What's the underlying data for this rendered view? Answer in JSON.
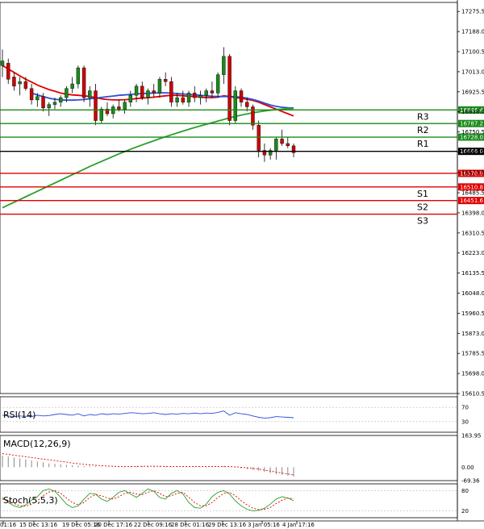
{
  "chart_data": {
    "type": "candlestick",
    "price_axis": {
      "ticks": [
        "17275.5",
        "17188.0",
        "17100.5",
        "17013.0",
        "16925.5",
        "16838.0",
        "16750.5",
        "16663.0",
        "16573.5",
        "16485.5",
        "16398.0",
        "16310.5",
        "16223.0",
        "16135.5",
        "16048.0",
        "15960.5",
        "15873.0",
        "15785.5",
        "15698.0",
        "15610.5"
      ],
      "range": [
        15610.5,
        17315
      ]
    },
    "time_axis": {
      "labels": [
        "01:16",
        "15 Dec 13:16",
        "19 Dec 05:16",
        "20 Dec 17:16",
        "22 Dec 09:16",
        "28 Dec 01:16",
        "29 Dec 13:16",
        "3 Jan 05:16",
        "4 Jan 17:16"
      ]
    },
    "levels": [
      {
        "name": "R3",
        "value": 16846.4,
        "label": "16846.4",
        "color": "#1a8a1a"
      },
      {
        "name": "R2",
        "value": 16787.2,
        "label": "16787.2",
        "color": "#1a8a1a"
      },
      {
        "name": "R1",
        "value": 16728.0,
        "label": "16728.0",
        "color": "#1a8a1a"
      },
      {
        "name": "",
        "value": 16666.0,
        "label": "16666.0",
        "color": "#000000"
      },
      {
        "name": "",
        "value": 16570.0,
        "label": "16570.0",
        "color": "#e00000"
      },
      {
        "name": "S1",
        "value": 16510.8,
        "label": "16510.8",
        "color": "#e00000"
      },
      {
        "name": "S2",
        "value": 16451.6,
        "label": "16451.6",
        "color": "#e00000"
      },
      {
        "name": "S3",
        "value": 16392.4,
        "label": "",
        "color": "#e00000"
      }
    ],
    "candles": [
      {
        "o": 17040,
        "h": 17110,
        "l": 16990,
        "c": 17060
      },
      {
        "o": 17050,
        "h": 17070,
        "l": 16960,
        "c": 16980
      },
      {
        "o": 16990,
        "h": 17010,
        "l": 16930,
        "c": 16950
      },
      {
        "o": 16960,
        "h": 16990,
        "l": 16910,
        "c": 16970
      },
      {
        "o": 16970,
        "h": 16990,
        "l": 16930,
        "c": 16940
      },
      {
        "o": 16940,
        "h": 16960,
        "l": 16870,
        "c": 16890
      },
      {
        "o": 16890,
        "h": 16920,
        "l": 16860,
        "c": 16905
      },
      {
        "o": 16905,
        "h": 16920,
        "l": 16840,
        "c": 16855
      },
      {
        "o": 16855,
        "h": 16880,
        "l": 16820,
        "c": 16870
      },
      {
        "o": 16870,
        "h": 16900,
        "l": 16850,
        "c": 16880
      },
      {
        "o": 16880,
        "h": 16910,
        "l": 16860,
        "c": 16900
      },
      {
        "o": 16900,
        "h": 16950,
        "l": 16880,
        "c": 16940
      },
      {
        "o": 16940,
        "h": 16990,
        "l": 16920,
        "c": 16960
      },
      {
        "o": 16960,
        "h": 17040,
        "l": 16940,
        "c": 17030
      },
      {
        "o": 17030,
        "h": 17040,
        "l": 16880,
        "c": 16900
      },
      {
        "o": 16900,
        "h": 16950,
        "l": 16860,
        "c": 16930
      },
      {
        "o": 16930,
        "h": 16960,
        "l": 16780,
        "c": 16800
      },
      {
        "o": 16800,
        "h": 16860,
        "l": 16790,
        "c": 16850
      },
      {
        "o": 16850,
        "h": 16880,
        "l": 16820,
        "c": 16830
      },
      {
        "o": 16830,
        "h": 16870,
        "l": 16810,
        "c": 16860
      },
      {
        "o": 16860,
        "h": 16890,
        "l": 16840,
        "c": 16850
      },
      {
        "o": 16850,
        "h": 16890,
        "l": 16830,
        "c": 16880
      },
      {
        "o": 16880,
        "h": 16930,
        "l": 16860,
        "c": 16910
      },
      {
        "o": 16910,
        "h": 16960,
        "l": 16880,
        "c": 16950
      },
      {
        "o": 16950,
        "h": 16970,
        "l": 16890,
        "c": 16900
      },
      {
        "o": 16900,
        "h": 16940,
        "l": 16870,
        "c": 16930
      },
      {
        "o": 16930,
        "h": 16960,
        "l": 16900,
        "c": 16920
      },
      {
        "o": 16920,
        "h": 16990,
        "l": 16900,
        "c": 16980
      },
      {
        "o": 16980,
        "h": 17010,
        "l": 16950,
        "c": 16970
      },
      {
        "o": 16970,
        "h": 16990,
        "l": 16860,
        "c": 16880
      },
      {
        "o": 16880,
        "h": 16920,
        "l": 16860,
        "c": 16900
      },
      {
        "o": 16900,
        "h": 16930,
        "l": 16870,
        "c": 16880
      },
      {
        "o": 16880,
        "h": 16930,
        "l": 16860,
        "c": 16920
      },
      {
        "o": 16920,
        "h": 16950,
        "l": 16880,
        "c": 16900
      },
      {
        "o": 16900,
        "h": 16930,
        "l": 16870,
        "c": 16910
      },
      {
        "o": 16910,
        "h": 16940,
        "l": 16880,
        "c": 16930
      },
      {
        "o": 16930,
        "h": 16970,
        "l": 16900,
        "c": 16920
      },
      {
        "o": 16920,
        "h": 17010,
        "l": 16900,
        "c": 17000
      },
      {
        "o": 17000,
        "h": 17120,
        "l": 16960,
        "c": 17080
      },
      {
        "o": 17080,
        "h": 17090,
        "l": 16780,
        "c": 16800
      },
      {
        "o": 16800,
        "h": 16950,
        "l": 16790,
        "c": 16930
      },
      {
        "o": 16930,
        "h": 16940,
        "l": 16860,
        "c": 16880
      },
      {
        "o": 16880,
        "h": 16900,
        "l": 16840,
        "c": 16860
      },
      {
        "o": 16860,
        "h": 16870,
        "l": 16760,
        "c": 16780
      },
      {
        "o": 16780,
        "h": 16800,
        "l": 16640,
        "c": 16670
      },
      {
        "o": 16670,
        "h": 16700,
        "l": 16620,
        "c": 16650
      },
      {
        "o": 16650,
        "h": 16680,
        "l": 16630,
        "c": 16670
      },
      {
        "o": 16670,
        "h": 16730,
        "l": 16630,
        "c": 16720
      },
      {
        "o": 16720,
        "h": 16760,
        "l": 16690,
        "c": 16700
      },
      {
        "o": 16700,
        "h": 16730,
        "l": 16680,
        "c": 16690
      },
      {
        "o": 16690,
        "h": 16700,
        "l": 16640,
        "c": 16660
      }
    ],
    "moving_averages": [
      {
        "color": "#e00000",
        "values": [
          17040,
          17025,
          17010,
          16995,
          16980,
          16968,
          16955,
          16945,
          16935,
          16928,
          16920,
          16915,
          16912,
          16910,
          16908,
          16905,
          16900,
          16895,
          16892,
          16890,
          16890,
          16891,
          16893,
          16896,
          16898,
          16900,
          16902,
          16905,
          16908,
          16910,
          16910,
          16908,
          16906,
          16904,
          16902,
          16900,
          16900,
          16902,
          16908,
          16905,
          16900,
          16897,
          16893,
          16888,
          16880,
          16870,
          16860,
          16850,
          16840,
          16830,
          16820
        ]
      },
      {
        "color": "#2b4fd8",
        "values": [
          null,
          null,
          null,
          null,
          null,
          16920,
          16912,
          16905,
          16898,
          16893,
          16890,
          16889,
          16889,
          16890,
          16892,
          16895,
          16898,
          16901,
          16904,
          16907,
          16910,
          16912,
          16914,
          16916,
          16918,
          16919,
          16920,
          16921,
          16921,
          16920,
          16918,
          16916,
          16914,
          16912,
          16910,
          16908,
          16906,
          16905,
          16905,
          16905,
          16904,
          16902,
          16898,
          16892,
          16885,
          16876,
          16868,
          16862,
          16858,
          16856,
          16855
        ]
      },
      {
        "color": "#2aa02a",
        "values": [
          16420,
          16432,
          16444,
          16456,
          16468,
          16480,
          16492,
          16504,
          16516,
          16528,
          16540,
          16552,
          16564,
          16576,
          16588,
          16600,
          16611,
          16622,
          16633,
          16644,
          16655,
          16665,
          16675,
          16685,
          16694,
          16703,
          16712,
          16721,
          16730,
          16738,
          16746,
          16754,
          16762,
          16770,
          16777,
          16784,
          16791,
          16798,
          16805,
          16812,
          16818,
          16824,
          16829,
          16834,
          16838,
          16842,
          16845,
          16848,
          16850,
          16852,
          16853
        ]
      }
    ],
    "rsi": {
      "label": "RSI(14)",
      "ticks": [
        "70",
        "30"
      ],
      "range": [
        0,
        100
      ],
      "values": [
        48,
        46,
        44,
        46,
        45,
        44,
        48,
        46,
        47,
        50,
        52,
        50,
        48,
        52,
        46,
        50,
        48,
        52,
        50,
        52,
        51,
        53,
        55,
        54,
        52,
        53,
        55,
        52,
        50,
        52,
        51,
        53,
        52,
        54,
        52,
        54,
        53,
        56,
        60,
        48,
        55,
        52,
        50,
        46,
        42,
        40,
        41,
        44,
        43,
        42,
        41
      ]
    },
    "macd": {
      "label": "MACD(12,26,9)",
      "ticks": [
        "163.95",
        "0.00",
        "-69.36"
      ],
      "range": [
        -69.36,
        163.95
      ],
      "histogram": [
        60,
        55,
        50,
        45,
        40,
        35,
        30,
        25,
        20,
        18,
        15,
        12,
        10,
        8,
        6,
        5,
        4,
        3,
        2,
        2,
        2,
        3,
        4,
        5,
        6,
        6,
        5,
        4,
        4,
        3,
        3,
        3,
        2,
        2,
        2,
        3,
        4,
        5,
        6,
        2,
        -2,
        -6,
        -10,
        -14,
        -18,
        -24,
        -30,
        -36,
        -40,
        -44,
        -48
      ],
      "signal": [
        70,
        66,
        62,
        58,
        54,
        50,
        46,
        42,
        38,
        34,
        30,
        26,
        22,
        18,
        15,
        12,
        10,
        8,
        6,
        5,
        4,
        4,
        4,
        4,
        5,
        5,
        5,
        5,
        4,
        4,
        4,
        4,
        3,
        3,
        3,
        3,
        3,
        4,
        4,
        3,
        2,
        0,
        -3,
        -6,
        -10,
        -15,
        -20,
        -25,
        -30,
        -35,
        -40
      ]
    },
    "stoch": {
      "label": "Stoch(5,5,3)",
      "ticks": [
        "80",
        "20"
      ],
      "range": [
        0,
        100
      ],
      "k": [
        60,
        45,
        35,
        30,
        38,
        52,
        62,
        80,
        85,
        78,
        60,
        40,
        30,
        35,
        55,
        72,
        70,
        55,
        48,
        60,
        75,
        80,
        70,
        60,
        72,
        85,
        78,
        60,
        55,
        72,
        80,
        70,
        45,
        30,
        28,
        40,
        62,
        75,
        80,
        70,
        50,
        35,
        25,
        20,
        22,
        28,
        40,
        55,
        62,
        58,
        50
      ],
      "d": [
        55,
        50,
        42,
        35,
        34,
        40,
        50,
        65,
        76,
        80,
        72,
        58,
        45,
        38,
        45,
        60,
        68,
        65,
        58,
        55,
        62,
        72,
        75,
        70,
        68,
        75,
        80,
        72,
        62,
        65,
        72,
        75,
        60,
        45,
        35,
        35,
        45,
        60,
        72,
        75,
        65,
        50,
        38,
        28,
        24,
        25,
        30,
        42,
        52,
        58,
        56
      ]
    }
  }
}
